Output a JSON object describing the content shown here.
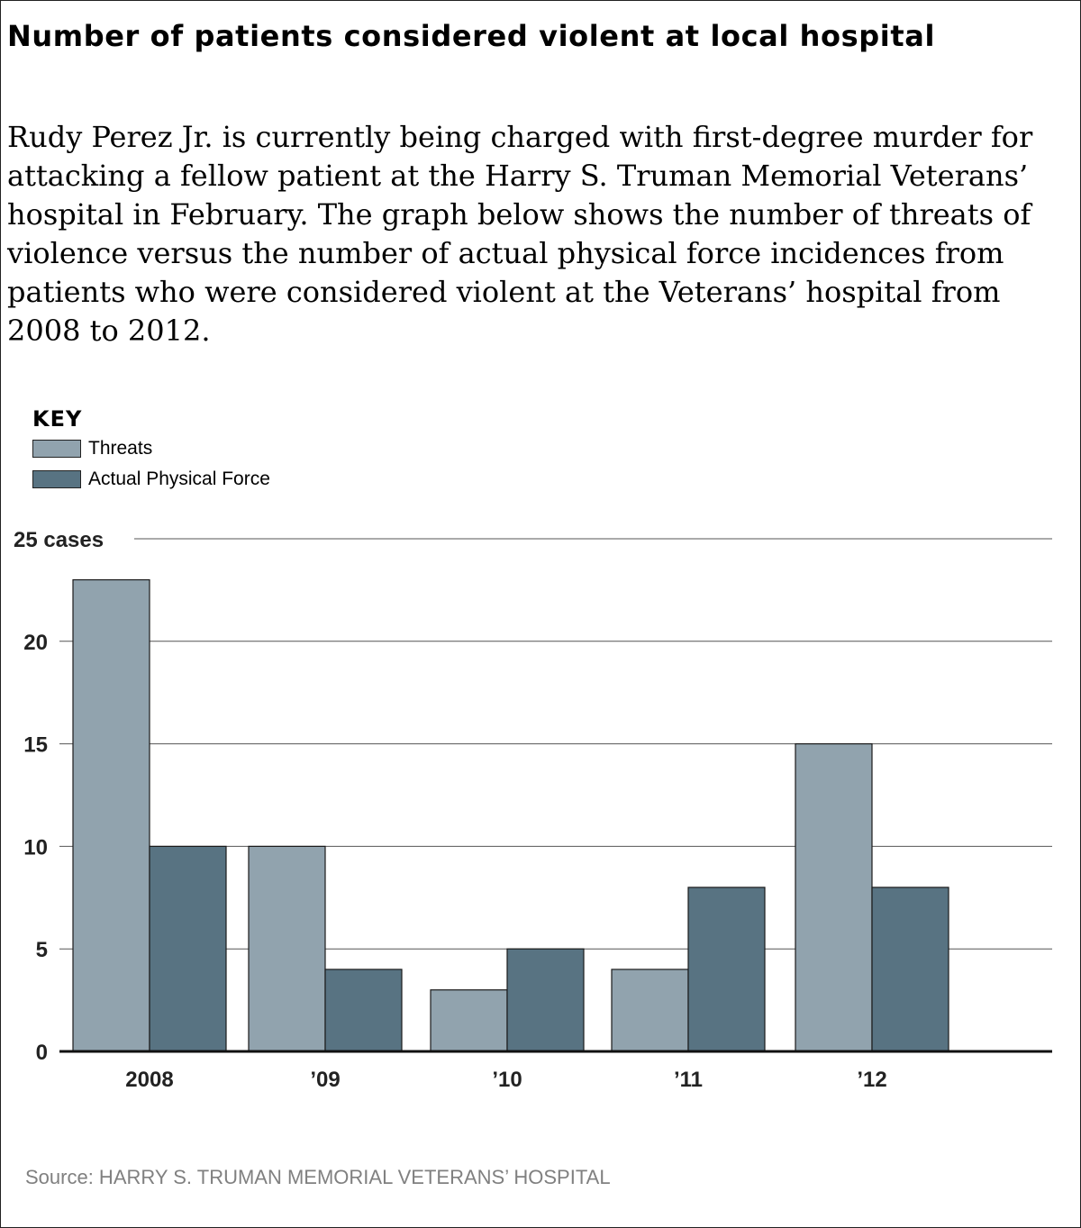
{
  "title": "Number of patients considered violent at local hospital",
  "intro": "Rudy Perez Jr. is currently being charged with first-degree murder for attacking a fellow patient at the Harry S. Truman Memorial Veterans’ hospital in February. The graph below shows the number of threats of violence versus the number of actual physical force incidences from patients who were considered violent at the Veterans’ hospital from 2008 to 2012.",
  "key": {
    "title": "KEY",
    "items": [
      {
        "label": "Threats",
        "color": "#91a3ae"
      },
      {
        "label": "Actual Physical Force",
        "color": "#587382"
      }
    ]
  },
  "chart_data": {
    "type": "bar",
    "categories": [
      "2008",
      "’09",
      "’10",
      "’11",
      "’12"
    ],
    "series": [
      {
        "name": "Threats",
        "values": [
          23,
          10,
          3,
          4,
          15
        ],
        "color": "#91a3ae"
      },
      {
        "name": "Actual Physical Force",
        "values": [
          10,
          4,
          5,
          8,
          8
        ],
        "color": "#587382"
      }
    ],
    "yticks": [
      "0",
      "5",
      "10",
      "15",
      "20",
      "25 cases"
    ],
    "ylim": [
      0,
      25
    ],
    "grid": true,
    "legend_position": "top-left"
  },
  "source": "Source: HARRY S. TRUMAN MEMORIAL VETERANS’ HOSPITAL"
}
